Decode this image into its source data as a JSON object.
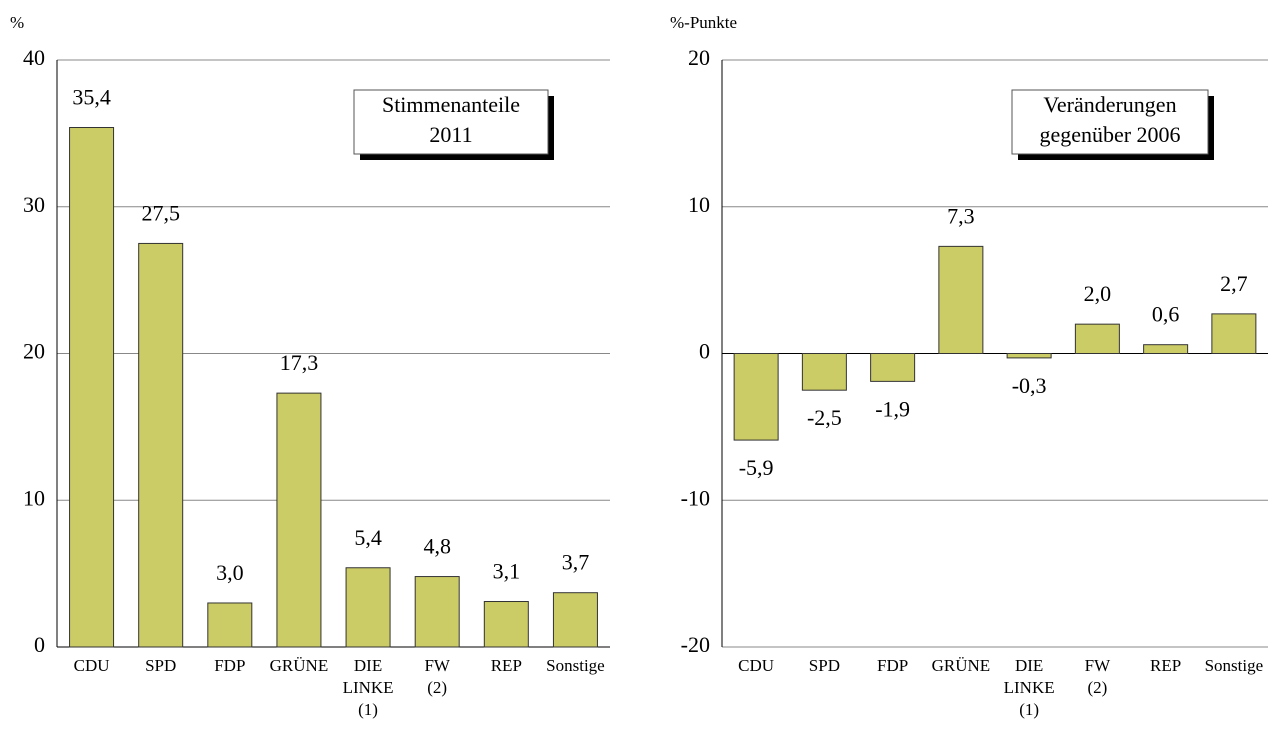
{
  "chart_data": [
    {
      "type": "bar",
      "title": [
        "Stimmenanteile",
        "2011"
      ],
      "y_label": "%",
      "categories": [
        [
          "CDU"
        ],
        [
          "SPD"
        ],
        [
          "FDP"
        ],
        [
          "GRÜNE"
        ],
        [
          "DIE",
          "LINKE",
          "(1)"
        ],
        [
          "FW",
          "(2)"
        ],
        [
          "REP"
        ],
        [
          "Sonstige"
        ]
      ],
      "values": [
        35.4,
        27.5,
        3.0,
        17.3,
        5.4,
        4.8,
        3.1,
        3.7
      ],
      "value_labels": [
        "35,4",
        "27,5",
        "3,0",
        "17,3",
        "5,4",
        "4,8",
        "3,1",
        "3,7"
      ],
      "color": "#cccc66",
      "ylim": [
        0,
        40
      ],
      "yticks": [
        0,
        10,
        20,
        30,
        40
      ],
      "grid": true
    },
    {
      "type": "bar",
      "title": [
        "Veränderungen",
        "gegenüber 2006"
      ],
      "y_label": "%-Punkte",
      "categories": [
        [
          "CDU"
        ],
        [
          "SPD"
        ],
        [
          "FDP"
        ],
        [
          "GRÜNE"
        ],
        [
          "DIE",
          "LINKE",
          "(1)"
        ],
        [
          "FW",
          "(2)"
        ],
        [
          "REP"
        ],
        [
          "Sonstige"
        ]
      ],
      "values": [
        -5.9,
        -2.5,
        -1.9,
        7.3,
        -0.3,
        2.0,
        0.6,
        2.7
      ],
      "value_labels": [
        "-5,9",
        "-2,5",
        "-1,9",
        "7,3",
        "-0,3",
        "2,0",
        "0,6",
        "2,7"
      ],
      "color": "#cccc66",
      "ylim": [
        -20,
        20
      ],
      "yticks": [
        -20,
        -10,
        0,
        10,
        20
      ],
      "grid": true
    }
  ]
}
